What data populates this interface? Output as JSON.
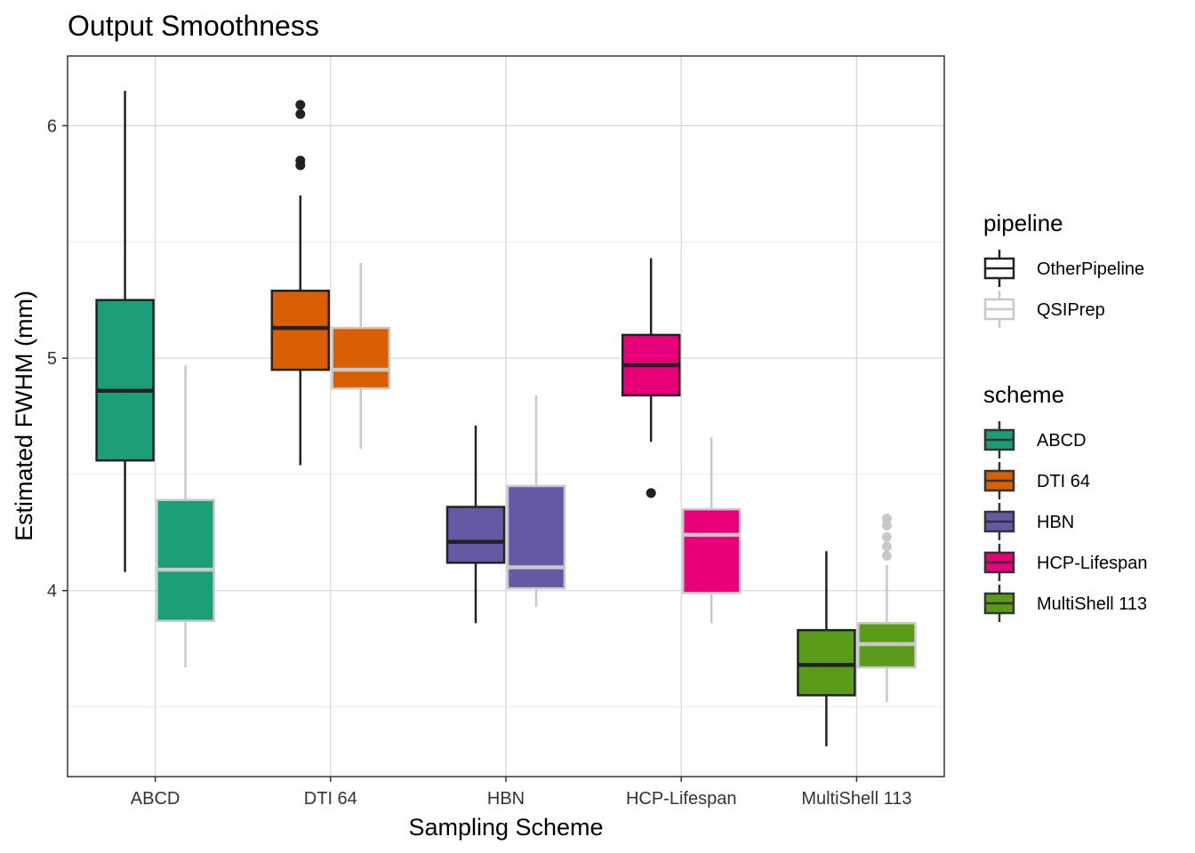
{
  "chart_data": {
    "type": "boxplot",
    "title": "Output Smoothness",
    "xlabel": "Sampling Scheme",
    "ylabel": "Estimated FWHM (mm)",
    "categories": [
      "ABCD",
      "DTI 64",
      "HBN",
      "HCP-Lifespan",
      "MultiShell 113"
    ],
    "ylim": [
      3.2,
      6.3
    ],
    "yticks": [
      4,
      5,
      6
    ],
    "grid": true,
    "legend_position": "right",
    "legends": [
      {
        "title": "pipeline",
        "entries": [
          {
            "label": "OtherPipeline",
            "color": "#222222"
          },
          {
            "label": "QSIPrep",
            "color": "#c8c8c8"
          }
        ]
      },
      {
        "title": "scheme",
        "entries": [
          {
            "label": "ABCD",
            "color": "#1b9e77"
          },
          {
            "label": "DTI 64",
            "color": "#d95f02"
          },
          {
            "label": "HBN",
            "color": "#6559a6"
          },
          {
            "label": "HCP-Lifespan",
            "color": "#e7007a"
          },
          {
            "label": "MultiShell 113",
            "color": "#5a9c1a"
          }
        ]
      }
    ],
    "series": [
      {
        "name": "OtherPipeline",
        "boxes": [
          {
            "category": "ABCD",
            "whisker_low": 4.08,
            "q1": 4.56,
            "median": 4.86,
            "q3": 5.25,
            "whisker_high": 6.15,
            "outliers": []
          },
          {
            "category": "DTI 64",
            "whisker_low": 4.54,
            "q1": 4.95,
            "median": 5.13,
            "q3": 5.29,
            "whisker_high": 5.7,
            "outliers": [
              5.83,
              5.85,
              6.05,
              6.09
            ]
          },
          {
            "category": "HBN",
            "whisker_low": 3.86,
            "q1": 4.12,
            "median": 4.21,
            "q3": 4.36,
            "whisker_high": 4.71,
            "outliers": []
          },
          {
            "category": "HCP-Lifespan",
            "whisker_low": 4.64,
            "q1": 4.84,
            "median": 4.97,
            "q3": 5.1,
            "whisker_high": 5.43,
            "outliers": [
              4.42
            ]
          },
          {
            "category": "MultiShell 113",
            "whisker_low": 3.33,
            "q1": 3.55,
            "median": 3.68,
            "q3": 3.83,
            "whisker_high": 4.17,
            "outliers": []
          }
        ]
      },
      {
        "name": "QSIPrep",
        "boxes": [
          {
            "category": "ABCD",
            "whisker_low": 3.67,
            "q1": 3.87,
            "median": 4.09,
            "q3": 4.39,
            "whisker_high": 4.97,
            "outliers": []
          },
          {
            "category": "DTI 64",
            "whisker_low": 4.61,
            "q1": 4.87,
            "median": 4.95,
            "q3": 5.13,
            "whisker_high": 5.41,
            "outliers": []
          },
          {
            "category": "HBN",
            "whisker_low": 3.93,
            "q1": 4.01,
            "median": 4.1,
            "q3": 4.45,
            "whisker_high": 4.84,
            "outliers": []
          },
          {
            "category": "HCP-Lifespan",
            "whisker_low": 3.86,
            "q1": 3.99,
            "median": 4.24,
            "q3": 4.35,
            "whisker_high": 4.66,
            "outliers": []
          },
          {
            "category": "MultiShell 113",
            "whisker_low": 3.52,
            "q1": 3.67,
            "median": 3.77,
            "q3": 3.86,
            "whisker_high": 4.11,
            "outliers": [
              4.15,
              4.19,
              4.23,
              4.28,
              4.31
            ]
          }
        ]
      }
    ]
  }
}
